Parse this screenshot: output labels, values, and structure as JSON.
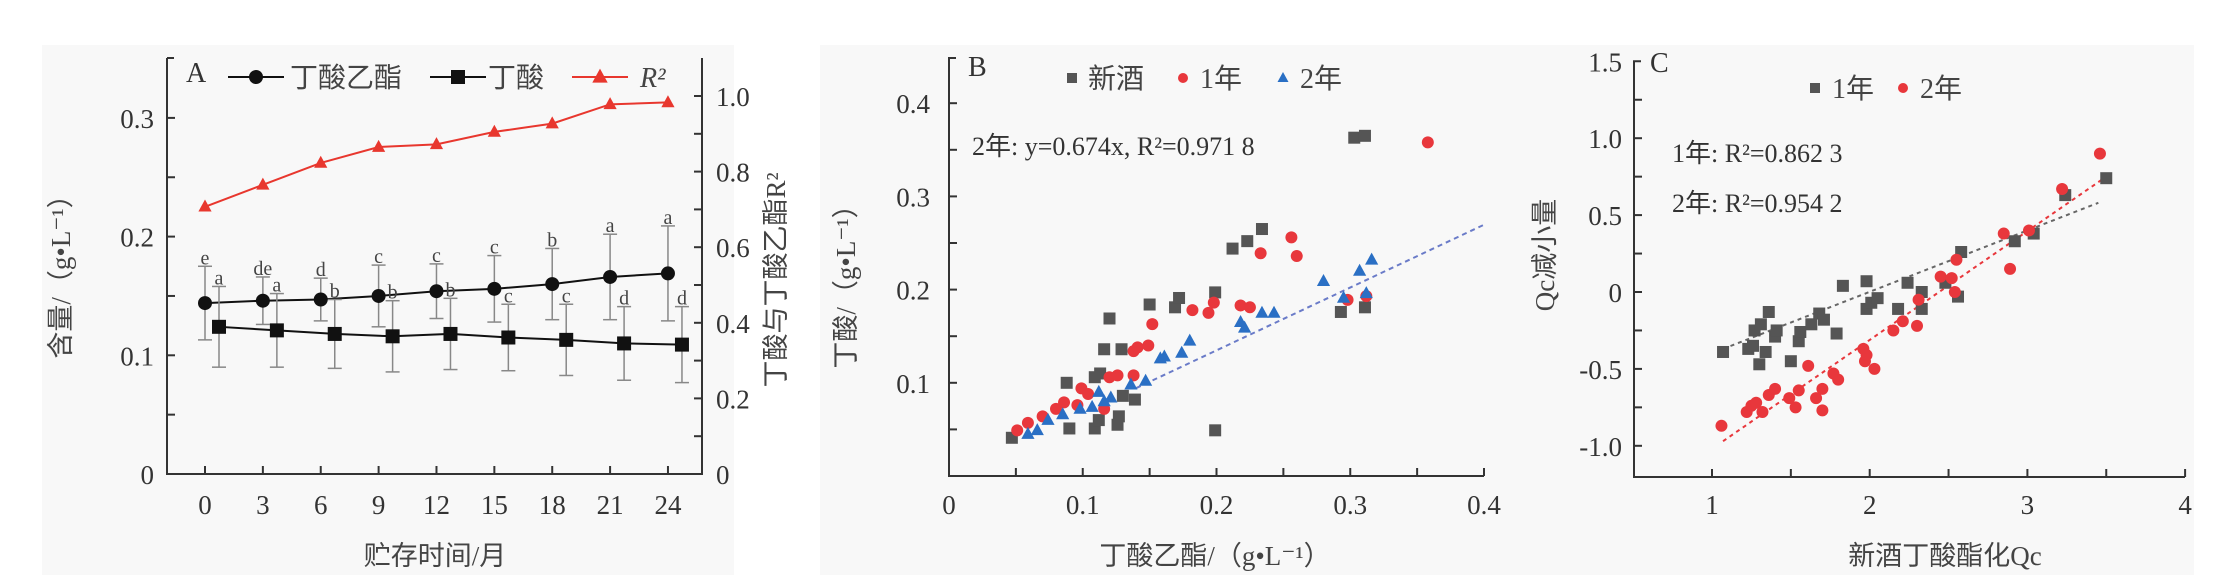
{
  "chart_data": [
    {
      "panel": "A",
      "type": "line",
      "xlabel": "贮存时间/月",
      "ylabel": "含量/（g•L⁻¹）",
      "ylabel_right": "丁酸与丁酸乙酯R²",
      "x": [
        0,
        3,
        6,
        9,
        12,
        15,
        18,
        21,
        24
      ],
      "xticks": [
        "0",
        "3",
        "6",
        "9",
        "12",
        "15",
        "18",
        "21",
        "24"
      ],
      "ylim": [
        0,
        0.35
      ],
      "yticks": [
        "0",
        "0.1",
        "0.2",
        "0.3"
      ],
      "ylim_right": [
        0,
        1.1
      ],
      "yticks_right": [
        "0",
        "0.2",
        "0.4",
        "0.6",
        "0.8",
        "1.0"
      ],
      "series": [
        {
          "name": "丁酸乙酯",
          "axis": "left",
          "marker": "circle",
          "color": "#111111",
          "values": [
            0.144,
            0.146,
            0.147,
            0.15,
            0.154,
            0.156,
            0.16,
            0.166,
            0.169
          ],
          "errors": [
            0.031,
            0.02,
            0.018,
            0.026,
            0.023,
            0.028,
            0.03,
            0.036,
            0.04
          ],
          "letters": [
            "e",
            "de",
            "d",
            "c",
            "c",
            "c",
            "b",
            "a",
            "a"
          ]
        },
        {
          "name": "丁酸",
          "axis": "left",
          "marker": "square",
          "color": "#111111",
          "values": [
            0.124,
            0.121,
            0.118,
            0.116,
            0.118,
            0.115,
            0.113,
            0.11,
            0.109
          ],
          "errors": [
            0.034,
            0.031,
            0.029,
            0.03,
            0.03,
            0.028,
            0.03,
            0.031,
            0.032
          ],
          "letters": [
            "a",
            "a",
            "b",
            "b",
            "b",
            "c",
            "c",
            "d",
            "d"
          ]
        },
        {
          "name": "R²",
          "axis": "right",
          "marker": "triangle",
          "color": "#e8372e",
          "values": [
            0.707,
            0.765,
            0.823,
            0.865,
            0.872,
            0.905,
            0.927,
            0.978,
            0.983
          ]
        }
      ]
    },
    {
      "panel": "B",
      "type": "scatter",
      "xlabel": "丁酸乙酯/（g•L⁻¹）",
      "ylabel": "丁酸/（g•L⁻¹）",
      "xlim": [
        0,
        0.4
      ],
      "ylim": [
        0,
        0.45
      ],
      "xticks": [
        "0",
        "0.1",
        "0.2",
        "0.3",
        "0.4"
      ],
      "yticks": [
        "0.1",
        "0.2",
        "0.3",
        "0.4"
      ],
      "annotation": "2年: y=0.674x, R²=0.971 8",
      "trendline": {
        "series": "2年",
        "slope": 0.674,
        "x_range": [
          0.14,
          0.4
        ],
        "color": "#6a7bc8"
      },
      "series": [
        {
          "name": "新酒",
          "marker": "square",
          "color": "#555555",
          "points": [
            [
              0.047,
              0.041
            ],
            [
              0.09,
              0.051
            ],
            [
              0.088,
              0.1
            ],
            [
              0.109,
              0.051
            ],
            [
              0.112,
              0.06
            ],
            [
              0.109,
              0.106
            ],
            [
              0.113,
              0.11
            ],
            [
              0.116,
              0.136
            ],
            [
              0.12,
              0.169
            ],
            [
              0.126,
              0.055
            ],
            [
              0.127,
              0.064
            ],
            [
              0.129,
              0.136
            ],
            [
              0.13,
              0.086
            ],
            [
              0.139,
              0.082
            ],
            [
              0.15,
              0.184
            ],
            [
              0.169,
              0.181
            ],
            [
              0.172,
              0.191
            ],
            [
              0.199,
              0.049
            ],
            [
              0.199,
              0.197
            ],
            [
              0.212,
              0.244
            ],
            [
              0.223,
              0.252
            ],
            [
              0.234,
              0.265
            ],
            [
              0.293,
              0.176
            ],
            [
              0.311,
              0.181
            ],
            [
              0.303,
              0.363
            ],
            [
              0.311,
              0.365
            ]
          ]
        },
        {
          "name": "1年",
          "marker": "circle",
          "color": "#e8373c",
          "points": [
            [
              0.051,
              0.049
            ],
            [
              0.059,
              0.057
            ],
            [
              0.07,
              0.064
            ],
            [
              0.08,
              0.072
            ],
            [
              0.086,
              0.079
            ],
            [
              0.096,
              0.076
            ],
            [
              0.099,
              0.094
            ],
            [
              0.104,
              0.088
            ],
            [
              0.116,
              0.072
            ],
            [
              0.12,
              0.106
            ],
            [
              0.126,
              0.108
            ],
            [
              0.138,
              0.108
            ],
            [
              0.138,
              0.134
            ],
            [
              0.141,
              0.138
            ],
            [
              0.149,
              0.14
            ],
            [
              0.152,
              0.163
            ],
            [
              0.182,
              0.178
            ],
            [
              0.194,
              0.175
            ],
            [
              0.198,
              0.186
            ],
            [
              0.218,
              0.183
            ],
            [
              0.225,
              0.181
            ],
            [
              0.233,
              0.239
            ],
            [
              0.256,
              0.256
            ],
            [
              0.26,
              0.236
            ],
            [
              0.298,
              0.189
            ],
            [
              0.312,
              0.193
            ],
            [
              0.358,
              0.358
            ]
          ]
        },
        {
          "name": "2年",
          "marker": "triangle",
          "color": "#2a6fc4",
          "points": [
            [
              0.059,
              0.045
            ],
            [
              0.066,
              0.049
            ],
            [
              0.074,
              0.06
            ],
            [
              0.085,
              0.066
            ],
            [
              0.098,
              0.072
            ],
            [
              0.107,
              0.074
            ],
            [
              0.112,
              0.09
            ],
            [
              0.116,
              0.08
            ],
            [
              0.121,
              0.084
            ],
            [
              0.136,
              0.098
            ],
            [
              0.147,
              0.102
            ],
            [
              0.158,
              0.126
            ],
            [
              0.161,
              0.128
            ],
            [
              0.174,
              0.132
            ],
            [
              0.18,
              0.145
            ],
            [
              0.218,
              0.165
            ],
            [
              0.221,
              0.159
            ],
            [
              0.234,
              0.175
            ],
            [
              0.243,
              0.175
            ],
            [
              0.28,
              0.209
            ],
            [
              0.295,
              0.191
            ],
            [
              0.307,
              0.22
            ],
            [
              0.312,
              0.196
            ],
            [
              0.316,
              0.232
            ]
          ]
        }
      ]
    },
    {
      "panel": "C",
      "type": "scatter",
      "xlabel": "新酒丁酸酯化Qc",
      "ylabel": "Qc减小量",
      "xlim": [
        0.5,
        4
      ],
      "ylim": [
        -1.2,
        1.5
      ],
      "xticks": [
        "1",
        "2",
        "3",
        "4"
      ],
      "yticks": [
        "-1.0",
        "-0.5",
        "0",
        "0.5",
        "1.0",
        "1.5"
      ],
      "annotations": [
        "1年: R²=0.862 3",
        "2年: R²=0.954 2"
      ],
      "trendlines": [
        {
          "series": "1年",
          "from": [
            1.07,
            -0.37
          ],
          "to": [
            3.45,
            0.58
          ],
          "color": "#666666"
        },
        {
          "series": "2年",
          "from": [
            1.07,
            -0.97
          ],
          "to": [
            3.5,
            0.75
          ],
          "color": "#e8373c"
        }
      ],
      "series": [
        {
          "name": "1年",
          "marker": "square",
          "color": "#555555",
          "points": [
            [
              1.07,
              -0.39
            ],
            [
              1.23,
              -0.37
            ],
            [
              1.26,
              -0.35
            ],
            [
              1.27,
              -0.25
            ],
            [
              1.31,
              -0.21
            ],
            [
              1.3,
              -0.47
            ],
            [
              1.34,
              -0.39
            ],
            [
              1.36,
              -0.13
            ],
            [
              1.4,
              -0.29
            ],
            [
              1.41,
              -0.25
            ],
            [
              1.5,
              -0.45
            ],
            [
              1.55,
              -0.32
            ],
            [
              1.56,
              -0.26
            ],
            [
              1.63,
              -0.21
            ],
            [
              1.68,
              -0.14
            ],
            [
              1.71,
              -0.18
            ],
            [
              1.79,
              -0.27
            ],
            [
              1.83,
              0.04
            ],
            [
              1.98,
              0.07
            ],
            [
              1.98,
              -0.11
            ],
            [
              2.01,
              -0.07
            ],
            [
              2.05,
              -0.04
            ],
            [
              2.18,
              -0.11
            ],
            [
              2.24,
              0.06
            ],
            [
              2.33,
              0.0
            ],
            [
              2.33,
              -0.11
            ],
            [
              2.48,
              0.06
            ],
            [
              2.56,
              -0.03
            ],
            [
              2.58,
              0.26
            ],
            [
              2.92,
              0.33
            ],
            [
              3.04,
              0.38
            ],
            [
              3.24,
              0.63
            ],
            [
              3.5,
              0.74
            ]
          ]
        },
        {
          "name": "2年",
          "marker": "circle",
          "color": "#e8373c",
          "points": [
            [
              1.06,
              -0.87
            ],
            [
              1.22,
              -0.78
            ],
            [
              1.25,
              -0.74
            ],
            [
              1.28,
              -0.72
            ],
            [
              1.32,
              -0.78
            ],
            [
              1.36,
              -0.67
            ],
            [
              1.4,
              -0.63
            ],
            [
              1.49,
              -0.69
            ],
            [
              1.53,
              -0.75
            ],
            [
              1.55,
              -0.64
            ],
            [
              1.61,
              -0.48
            ],
            [
              1.66,
              -0.69
            ],
            [
              1.7,
              -0.63
            ],
            [
              1.7,
              -0.77
            ],
            [
              1.77,
              -0.53
            ],
            [
              1.8,
              -0.57
            ],
            [
              1.96,
              -0.37
            ],
            [
              1.97,
              -0.45
            ],
            [
              1.98,
              -0.41
            ],
            [
              2.03,
              -0.5
            ],
            [
              2.15,
              -0.25
            ],
            [
              2.21,
              -0.19
            ],
            [
              2.3,
              -0.22
            ],
            [
              2.31,
              -0.05
            ],
            [
              2.45,
              0.1
            ],
            [
              2.52,
              0.09
            ],
            [
              2.54,
              0.0
            ],
            [
              2.55,
              0.21
            ],
            [
              2.85,
              0.38
            ],
            [
              2.89,
              0.15
            ],
            [
              3.01,
              0.4
            ],
            [
              3.22,
              0.67
            ],
            [
              3.46,
              0.9
            ]
          ]
        }
      ]
    }
  ]
}
